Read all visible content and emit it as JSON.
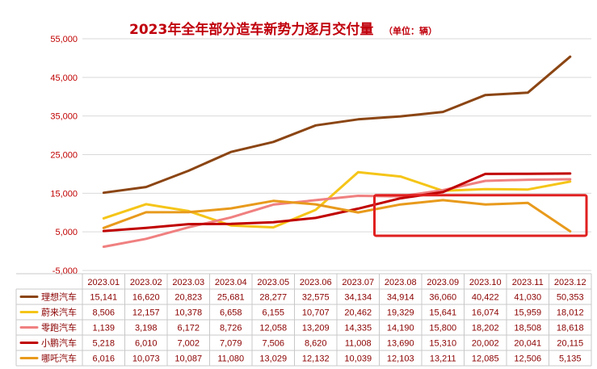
{
  "chart_data": {
    "type": "line",
    "title": "2023年全年部分造车新势力逐月交付量",
    "subtitle": "（单位：辆）",
    "ylim": [
      -5000,
      55000
    ],
    "yticks": [
      -5000,
      5000,
      15000,
      25000,
      35000,
      45000,
      55000
    ],
    "ytick_labels": [
      "-5,000",
      "5,000",
      "15,000",
      "25,000",
      "35,000",
      "45,000",
      "55,000"
    ],
    "grid": true,
    "legend": "data-table-below",
    "categories": [
      "2023.01",
      "2023.02",
      "2023.03",
      "2023.04",
      "2023.05",
      "2023.06",
      "2023.07",
      "2023.08",
      "2023.09",
      "2023.10",
      "2023.11",
      "2023.12"
    ],
    "series": [
      {
        "name": "理想汽车",
        "color": "#8b4513",
        "values": [
          15141,
          16620,
          20823,
          25681,
          28277,
          32575,
          34134,
          34914,
          36060,
          40422,
          41030,
          50353
        ],
        "labels": [
          "15,141",
          "16,620",
          "20,823",
          "25,681",
          "28,277",
          "32,575",
          "34,134",
          "34,914",
          "36,060",
          "40,422",
          "41,030",
          "50,353"
        ]
      },
      {
        "name": "蔚来汽车",
        "color": "#f5c518",
        "values": [
          8506,
          12157,
          10378,
          6658,
          6155,
          10707,
          20462,
          19329,
          15641,
          16074,
          15959,
          18012
        ],
        "labels": [
          "8,506",
          "12,157",
          "10,378",
          "6,658",
          "6,155",
          "10,707",
          "20,462",
          "19,329",
          "15,641",
          "16,074",
          "15,959",
          "18,012"
        ]
      },
      {
        "name": "零跑汽车",
        "color": "#f08080",
        "values": [
          1139,
          3198,
          6172,
          8726,
          12058,
          13209,
          14335,
          14190,
          15800,
          18202,
          18508,
          18618
        ],
        "labels": [
          "1,139",
          "3,198",
          "6,172",
          "8,726",
          "12,058",
          "13,209",
          "14,335",
          "14,190",
          "15,800",
          "18,202",
          "18,508",
          "18,618"
        ]
      },
      {
        "name": "小鹏汽车",
        "color": "#c00000",
        "values": [
          5218,
          6010,
          7002,
          7079,
          7506,
          8620,
          11008,
          13690,
          15310,
          20002,
          20041,
          20115
        ],
        "labels": [
          "5,218",
          "6,010",
          "7,002",
          "7,079",
          "7,506",
          "8,620",
          "11,008",
          "13,690",
          "15,310",
          "20,002",
          "20,041",
          "20,115"
        ]
      },
      {
        "name": "哪吒汽车",
        "color": "#e89a1c",
        "values": [
          6016,
          10073,
          10087,
          11080,
          13029,
          12132,
          10039,
          12103,
          13211,
          12085,
          12506,
          5135
        ],
        "labels": [
          "6,016",
          "10,073",
          "10,087",
          "11,080",
          "13,029",
          "12,132",
          "10,039",
          "12,103",
          "13,211",
          "12,085",
          "12,506",
          "5,135"
        ]
      }
    ],
    "annotations": [
      {
        "type": "highlight-box",
        "color": "#e02020",
        "x_range": [
          "2023.08",
          "2023.12"
        ],
        "y_range": [
          4000,
          14500
        ]
      }
    ]
  }
}
